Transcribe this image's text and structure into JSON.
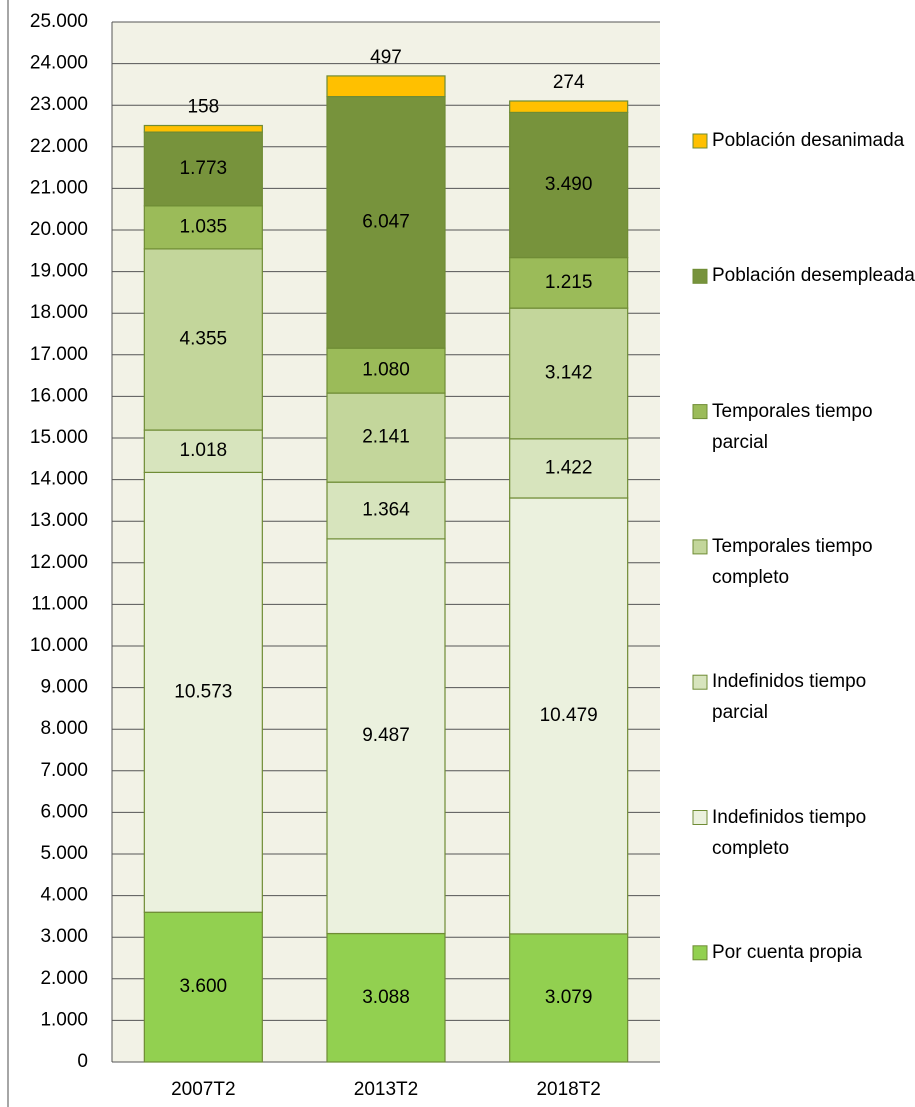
{
  "chart_data": {
    "type": "stacked_bar",
    "categories": [
      "2007T2",
      "2013T2",
      "2018T2"
    ],
    "series": [
      {
        "name": "Por cuenta propia",
        "color": "#92d050",
        "values": [
          3600,
          3088,
          3079
        ],
        "value_labels": [
          "3.600",
          "3.088",
          "3.079"
        ]
      },
      {
        "name": "Indefinidos tiempo completo",
        "color": "#ebf1de",
        "values": [
          10573,
          9487,
          10479
        ],
        "value_labels": [
          "10.573",
          "9.487",
          "10.479"
        ]
      },
      {
        "name": "Indefinidos tiempo parcial",
        "color": "#d7e4bd",
        "values": [
          1018,
          1364,
          1422
        ],
        "value_labels": [
          "1.018",
          "1.364",
          "1.422"
        ]
      },
      {
        "name": "Temporales tiempo completo",
        "color": "#c3d69b",
        "values": [
          4355,
          2141,
          3142
        ],
        "value_labels": [
          "4.355",
          "2.141",
          "3.142"
        ]
      },
      {
        "name": "Temporales tiempo parcial",
        "color": "#9bbb59",
        "values": [
          1035,
          1080,
          1215
        ],
        "value_labels": [
          "1.035",
          "1.080",
          "1.215"
        ]
      },
      {
        "name": "Población desempleada",
        "color": "#77933c",
        "values": [
          1773,
          6047,
          3490
        ],
        "value_labels": [
          "1.773",
          "6.047",
          "3.490"
        ]
      },
      {
        "name": "Población desanimada",
        "color": "#ffc000",
        "values": [
          158,
          497,
          274
        ],
        "value_labels": [
          "158",
          "497",
          "274"
        ]
      }
    ],
    "ylim": [
      0,
      25000
    ],
    "yticks": [
      0,
      {
        "value": 1000,
        "label": "1.000"
      },
      {
        "value": 2000,
        "label": "2.000"
      },
      {
        "value": 3000,
        "label": "3.000"
      },
      {
        "value": 4000,
        "label": "4.000"
      },
      {
        "value": 5000,
        "label": "5.000"
      },
      {
        "value": 6000,
        "label": "6.000"
      },
      {
        "value": 7000,
        "label": "7.000"
      },
      {
        "value": 8000,
        "label": "8.000"
      },
      {
        "value": 9000,
        "label": "9.000"
      },
      {
        "value": 10000,
        "label": "10.000"
      },
      {
        "value": 11000,
        "label": "11.000"
      },
      {
        "value": 12000,
        "label": "12.000"
      },
      {
        "value": 13000,
        "label": "13.000"
      },
      {
        "value": 14000,
        "label": "14.000"
      },
      {
        "value": 15000,
        "label": "15.000"
      },
      {
        "value": 16000,
        "label": "16.000"
      },
      {
        "value": 17000,
        "label": "17.000"
      },
      {
        "value": 18000,
        "label": "18.000"
      },
      {
        "value": 19000,
        "label": "19.000"
      },
      {
        "value": 20000,
        "label": "20.000"
      },
      {
        "value": 21000,
        "label": "21.000"
      },
      {
        "value": 22000,
        "label": "22.000"
      },
      {
        "value": 23000,
        "label": "23.000"
      },
      {
        "value": 24000,
        "label": "24.000"
      },
      {
        "value": 25000,
        "label": "25.000"
      }
    ],
    "grid": true,
    "legend": "right"
  }
}
